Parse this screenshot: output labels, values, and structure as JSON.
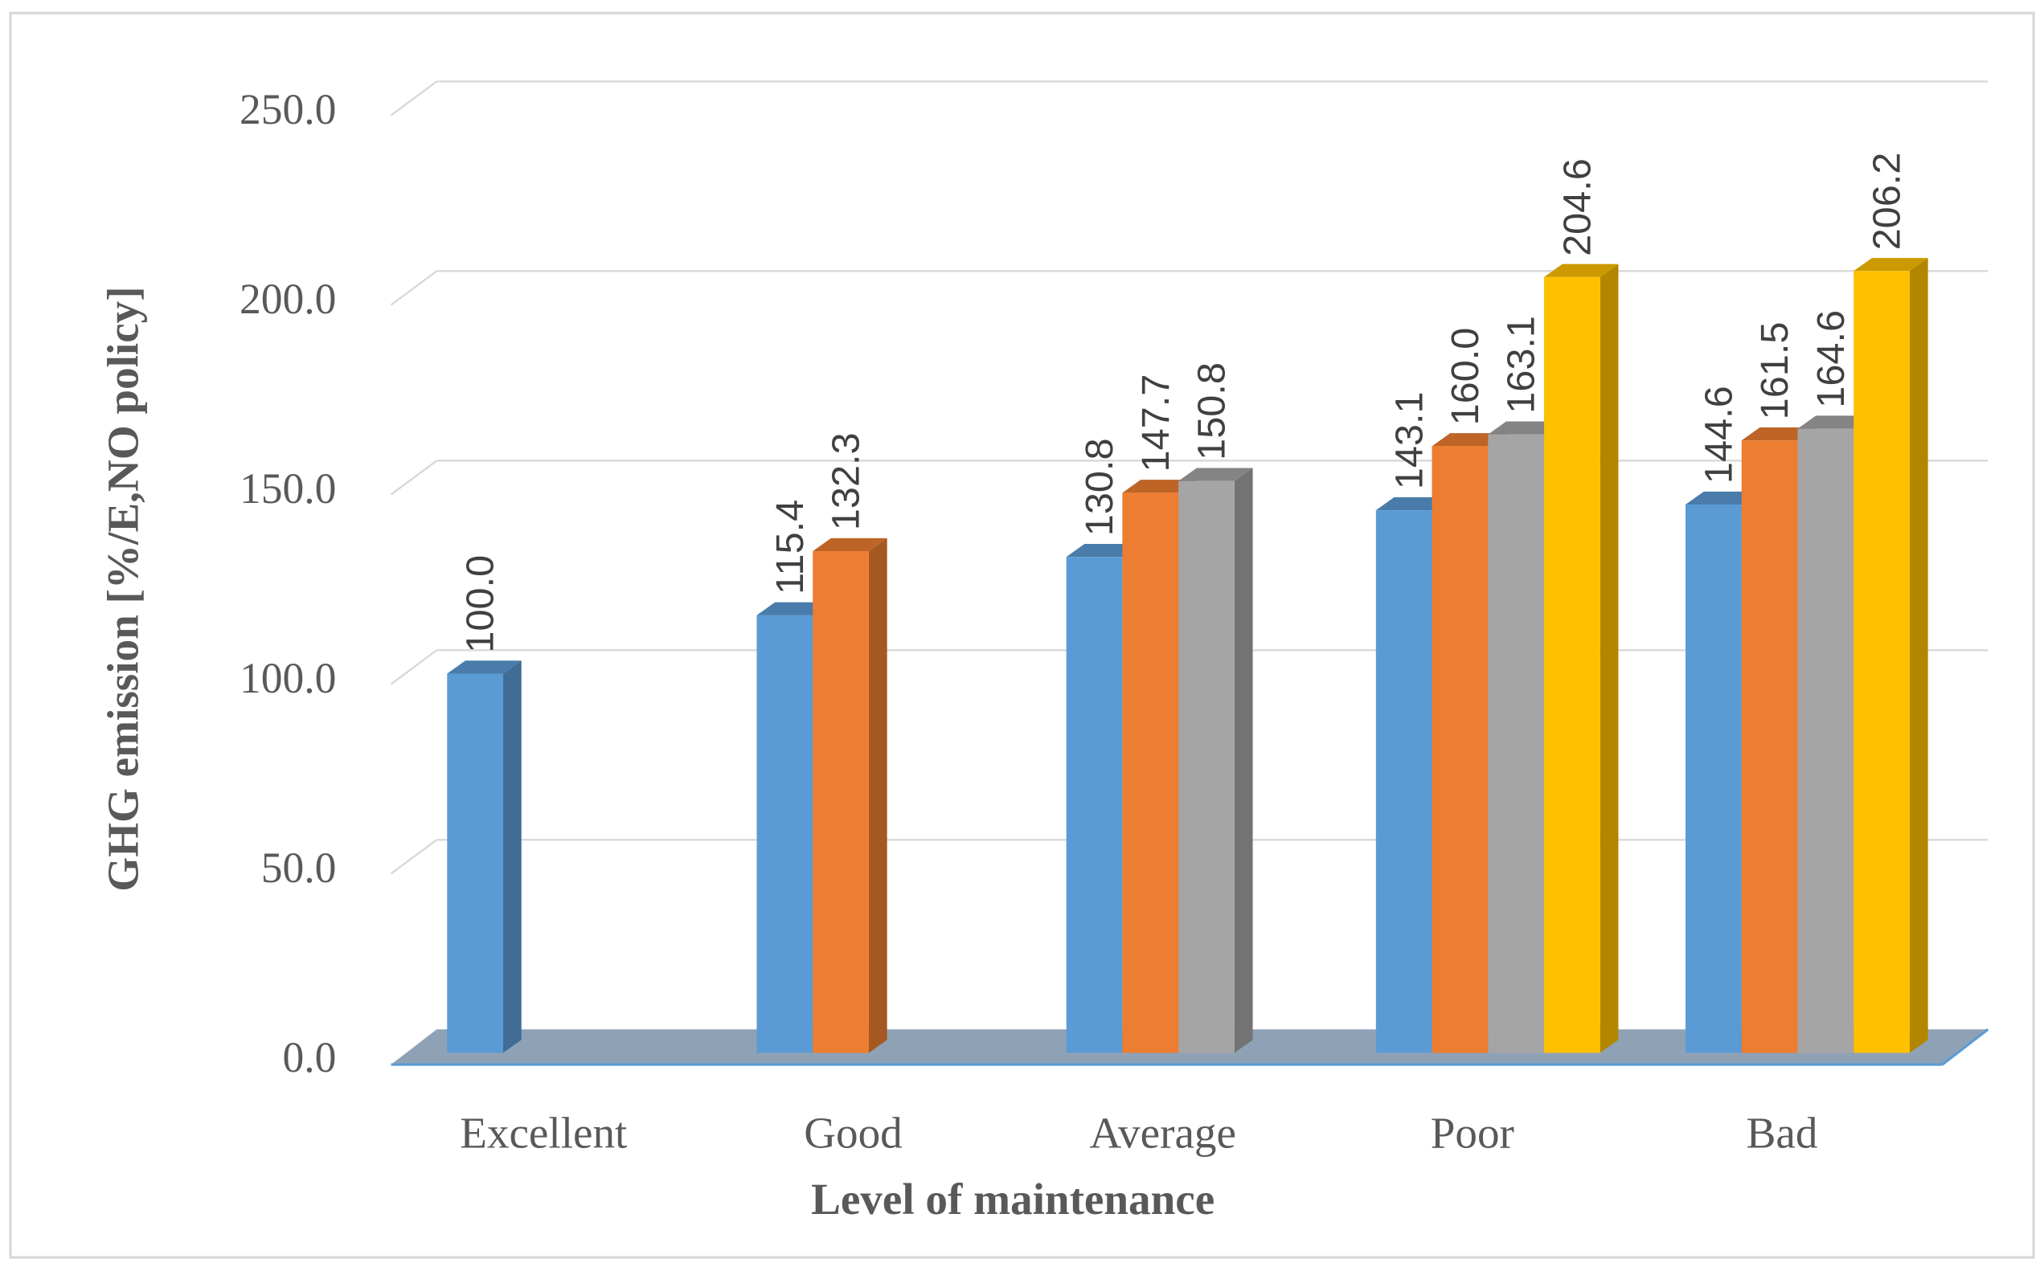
{
  "chart_data": {
    "type": "bar3d",
    "x_label": "Level of maintenance",
    "y_label": "GHG emission [%/E,NO policy]",
    "categories": [
      "Excellent",
      "Good",
      "Average",
      "Poor",
      "Bad"
    ],
    "series": [
      {
        "color": "#5b9bd5",
        "values": [
          100.0,
          115.4,
          130.8,
          143.1,
          144.6
        ],
        "value_labels": [
          "100.0",
          "115.4",
          "130.8",
          "143.1",
          "144.6"
        ]
      },
      {
        "color": "#ed7d31",
        "values": [
          null,
          132.3,
          147.7,
          160.0,
          161.5
        ],
        "value_labels": [
          null,
          "132.3",
          "147.7",
          "160.0",
          "161.5"
        ]
      },
      {
        "color": "#a5a5a5",
        "values": [
          null,
          null,
          150.8,
          163.1,
          164.6
        ],
        "value_labels": [
          null,
          null,
          "150.8",
          "163.1",
          "164.6"
        ]
      },
      {
        "color": "#ffc000",
        "values": [
          null,
          null,
          null,
          204.6,
          206.2
        ],
        "value_labels": [
          null,
          null,
          null,
          "204.6",
          "206.2"
        ]
      }
    ],
    "ylim": [
      0,
      250
    ],
    "yticks": [
      {
        "value": 0,
        "label": "0.0"
      },
      {
        "value": 50,
        "label": "50.0"
      },
      {
        "value": 100,
        "label": "100.0"
      },
      {
        "value": 150,
        "label": "150.0"
      },
      {
        "value": 200,
        "label": "200.0"
      },
      {
        "value": 250,
        "label": "250.0"
      }
    ],
    "grid": true
  }
}
